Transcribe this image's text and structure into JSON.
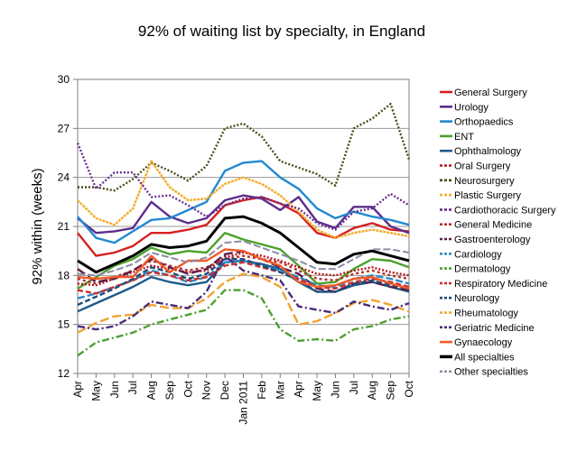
{
  "chart_data": {
    "type": "line",
    "title": "92% of waiting list by specialty, in England",
    "xlabel": "",
    "ylabel": "92% within (weeks)",
    "ylim": [
      12,
      30
    ],
    "yticks": [
      12,
      15,
      18,
      21,
      24,
      27,
      30
    ],
    "grid": "horizontal",
    "legend_position": "right",
    "x": [
      "Apr",
      "May",
      "Jun",
      "Jul",
      "Aug",
      "Sep",
      "Oct",
      "Nov",
      "Dec",
      "Jan 2011",
      "Feb",
      "Mar",
      "Apr",
      "May",
      "Jun",
      "Jul",
      "Aug",
      "Sep",
      "Oct"
    ],
    "series": [
      {
        "name": "General Surgery",
        "color": "#d6201f",
        "dash": "solid",
        "values": [
          20.6,
          19.2,
          19.4,
          19.8,
          20.6,
          20.6,
          20.8,
          21.1,
          22.3,
          22.6,
          22.8,
          22.4,
          21.8,
          20.6,
          20.3,
          20.9,
          21.2,
          20.8,
          20.7
        ]
      },
      {
        "name": "Urology",
        "color": "#5c2e8a",
        "dash": "solid",
        "values": [
          21.5,
          20.6,
          20.7,
          20.9,
          22.5,
          21.6,
          21.2,
          21.5,
          22.6,
          22.9,
          22.7,
          22.0,
          22.8,
          21.3,
          20.9,
          22.2,
          22.2,
          21.0,
          20.6
        ]
      },
      {
        "name": "Orthopaedics",
        "color": "#2388d1",
        "dash": "solid",
        "values": [
          21.6,
          20.3,
          20.0,
          20.7,
          21.4,
          21.5,
          22.0,
          22.5,
          24.4,
          24.9,
          25.0,
          24.0,
          23.3,
          22.1,
          21.5,
          21.9,
          21.6,
          21.4,
          21.1
        ]
      },
      {
        "name": "ENT",
        "color": "#4ca12a",
        "dash": "solid",
        "values": [
          17.2,
          17.9,
          18.6,
          19.0,
          19.7,
          19.3,
          19.5,
          19.4,
          20.6,
          20.2,
          19.9,
          19.6,
          18.6,
          17.5,
          17.6,
          18.4,
          19.0,
          18.9,
          18.5
        ]
      },
      {
        "name": "Ophthalmology",
        "color": "#1f5a8a",
        "dash": "solid",
        "values": [
          15.8,
          16.3,
          16.8,
          17.3,
          17.9,
          17.6,
          17.4,
          17.6,
          18.8,
          18.9,
          18.7,
          18.4,
          17.6,
          17.0,
          17.0,
          17.4,
          17.6,
          17.3,
          17.0
        ]
      },
      {
        "name": "Oral Surgery",
        "color": "#b8141a",
        "dash": "2,2",
        "values": [
          17.5,
          17.4,
          17.8,
          18.2,
          18.6,
          18.4,
          18.2,
          18.3,
          19.1,
          19.4,
          19.2,
          18.9,
          18.5,
          18.1,
          18.0,
          18.3,
          18.5,
          18.2,
          18.0
        ]
      },
      {
        "name": "Neurosurgery",
        "color": "#4d4d1a",
        "dash": "2,2",
        "values": [
          23.4,
          23.4,
          23.2,
          23.9,
          24.9,
          24.4,
          23.8,
          24.7,
          27.0,
          27.3,
          26.5,
          25.0,
          24.6,
          24.2,
          23.5,
          27.0,
          27.6,
          28.5,
          25.1
        ]
      },
      {
        "name": "Plastic Surgery",
        "color": "#f3ae2e",
        "dash": "3,1",
        "values": [
          22.6,
          21.5,
          21.1,
          22.1,
          25.0,
          23.4,
          22.6,
          22.7,
          23.6,
          24.0,
          23.6,
          22.9,
          21.9,
          20.8,
          20.3,
          20.6,
          20.8,
          20.6,
          20.4
        ]
      },
      {
        "name": "Cardiothoracic Surgery",
        "color": "#6a2f90",
        "dash": "2,2",
        "values": [
          26.1,
          23.3,
          24.3,
          24.3,
          22.8,
          22.9,
          22.3,
          21.6,
          22.3,
          22.7,
          22.8,
          22.4,
          22.1,
          21.2,
          20.8,
          21.9,
          22.1,
          23.0,
          22.3
        ]
      },
      {
        "name": "General Medicine",
        "color": "#b4302a",
        "dash": "3,3",
        "values": [
          17.8,
          17.5,
          17.9,
          18.3,
          18.9,
          18.6,
          18.3,
          18.5,
          19.0,
          19.2,
          19.0,
          18.8,
          18.3,
          17.8,
          17.7,
          18.1,
          18.3,
          18.0,
          17.8
        ]
      },
      {
        "name": "Gastroenterology",
        "color": "#5c1f4a",
        "dash": "10,4",
        "values": [
          18.4,
          17.6,
          17.8,
          18.3,
          19.0,
          18.5,
          18.1,
          18.4,
          19.3,
          19.5,
          19.0,
          18.5,
          18.1,
          17.2,
          17.0,
          17.5,
          17.6,
          17.3,
          17.1
        ]
      },
      {
        "name": "Cardiology",
        "color": "#2a8ac4",
        "dash": "8,3",
        "values": [
          16.6,
          16.9,
          17.3,
          17.7,
          18.3,
          18.0,
          17.6,
          17.9,
          18.8,
          18.9,
          18.6,
          18.3,
          17.9,
          17.4,
          17.3,
          17.8,
          18.0,
          17.8,
          17.5
        ]
      },
      {
        "name": "Dermatology",
        "color": "#4f9e32",
        "dash": "8,3,2,3",
        "values": [
          13.1,
          13.9,
          14.2,
          14.5,
          15.0,
          15.3,
          15.6,
          15.9,
          17.1,
          17.1,
          16.6,
          14.7,
          14.0,
          14.1,
          14.0,
          14.7,
          14.9,
          15.3,
          15.5
        ]
      },
      {
        "name": "Respiratory Medicine",
        "color": "#cf2d2d",
        "dash": "6,3",
        "values": [
          17.1,
          16.9,
          17.3,
          17.7,
          18.2,
          18.0,
          17.7,
          17.9,
          18.6,
          18.8,
          18.5,
          18.2,
          17.8,
          17.3,
          17.2,
          17.6,
          17.8,
          17.6,
          17.3
        ]
      },
      {
        "name": "Neurology",
        "color": "#1f4d7a",
        "dash": "6,3",
        "values": [
          16.2,
          16.7,
          17.2,
          17.8,
          18.5,
          18.2,
          17.8,
          18.1,
          19.0,
          19.0,
          18.6,
          18.2,
          17.7,
          17.0,
          17.0,
          17.5,
          17.7,
          17.4,
          17.2
        ]
      },
      {
        "name": "Rheumatology",
        "color": "#f1a330",
        "dash": "10,4",
        "values": [
          14.5,
          15.1,
          15.5,
          15.6,
          16.2,
          16.0,
          16.0,
          16.6,
          17.6,
          18.1,
          17.9,
          17.3,
          15.0,
          15.2,
          15.7,
          16.3,
          16.5,
          16.2,
          15.8
        ]
      },
      {
        "name": "Geriatric Medicine",
        "color": "#4a2a7a",
        "dash": "8,3,2,3",
        "values": [
          14.9,
          14.7,
          14.9,
          15.5,
          16.4,
          16.2,
          16.0,
          17.0,
          19.2,
          18.3,
          18.0,
          17.7,
          16.1,
          15.9,
          15.7,
          16.4,
          16.1,
          15.9,
          16.3
        ]
      },
      {
        "name": "Gynaecology",
        "color": "#f05a28",
        "dash": "solid",
        "values": [
          17.9,
          17.8,
          17.9,
          17.9,
          19.2,
          18.2,
          18.9,
          18.9,
          19.6,
          19.5,
          19.0,
          18.6,
          17.6,
          17.3,
          17.4,
          17.8,
          17.9,
          17.5,
          17.2
        ]
      },
      {
        "name": "All specialties",
        "color": "#000000",
        "dash": "solid",
        "width": 3,
        "values": [
          18.9,
          18.2,
          18.7,
          19.2,
          19.9,
          19.7,
          19.8,
          20.1,
          21.5,
          21.6,
          21.2,
          20.6,
          19.7,
          18.8,
          18.7,
          19.3,
          19.5,
          19.2,
          18.9
        ]
      },
      {
        "name": "Other specialties",
        "color": "#8c8ca6",
        "dash": "8,3",
        "width": 2,
        "values": [
          18.1,
          18.0,
          18.3,
          18.7,
          19.4,
          19.1,
          18.8,
          19.1,
          20.0,
          20.1,
          19.7,
          19.3,
          18.9,
          18.4,
          18.4,
          19.0,
          19.6,
          19.6,
          19.4
        ]
      }
    ]
  }
}
